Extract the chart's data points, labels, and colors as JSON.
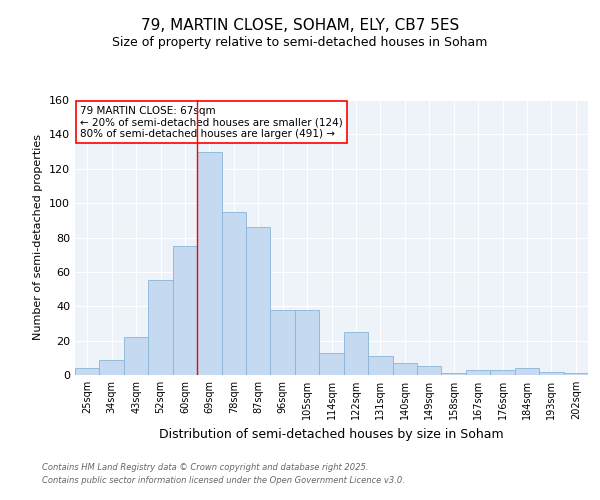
{
  "title": "79, MARTIN CLOSE, SOHAM, ELY, CB7 5ES",
  "subtitle": "Size of property relative to semi-detached houses in Soham",
  "xlabel": "Distribution of semi-detached houses by size in Soham",
  "ylabel": "Number of semi-detached properties",
  "categories": [
    "25sqm",
    "34sqm",
    "43sqm",
    "52sqm",
    "60sqm",
    "69sqm",
    "78sqm",
    "87sqm",
    "96sqm",
    "105sqm",
    "114sqm",
    "122sqm",
    "131sqm",
    "140sqm",
    "149sqm",
    "158sqm",
    "167sqm",
    "176sqm",
    "184sqm",
    "193sqm",
    "202sqm"
  ],
  "values": [
    4,
    9,
    22,
    55,
    75,
    130,
    95,
    86,
    38,
    38,
    13,
    25,
    11,
    7,
    5,
    1,
    3,
    3,
    4,
    2,
    1
  ],
  "bar_color": "#c5d9f0",
  "bar_edge_color": "#8ab4d8",
  "ylim": [
    0,
    160
  ],
  "yticks": [
    0,
    20,
    40,
    60,
    80,
    100,
    120,
    140,
    160
  ],
  "annotation_title": "79 MARTIN CLOSE: 67sqm",
  "annotation_line1": "← 20% of semi-detached houses are smaller (124)",
  "annotation_line2": "80% of semi-detached houses are larger (491) →",
  "footer_line1": "Contains HM Land Registry data © Crown copyright and database right 2025.",
  "footer_line2": "Contains public sector information licensed under the Open Government Licence v3.0.",
  "bg_color": "#eef2f9",
  "title_fontsize": 11,
  "subtitle_fontsize": 9
}
